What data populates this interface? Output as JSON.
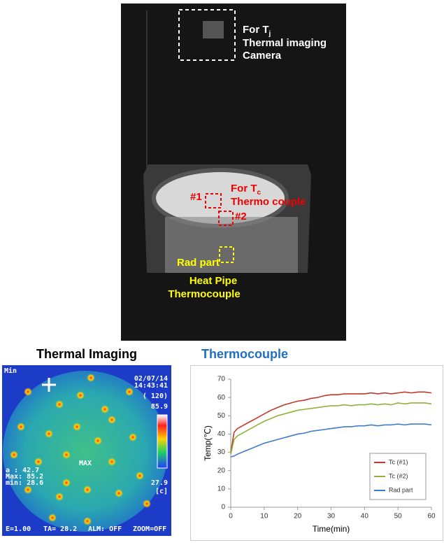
{
  "photo": {
    "camera_label": {
      "main": "For T",
      "sub": "j"
    },
    "camera_line2": "Thermal imaging",
    "camera_line3": "Camera",
    "case_label": {
      "main": "For T",
      "sub": "c"
    },
    "case_line2": "Thermo couple",
    "point1": "#1",
    "point2": "#2",
    "rad_label": "Rad part",
    "heatpipe_line1": "Heat Pipe",
    "heatpipe_line2": "Thermocouple"
  },
  "thermal": {
    "title": "Thermal Imaging",
    "mode": "Min",
    "date": "02/07/14",
    "time": "14:43:41",
    "range": "( 120)",
    "scale_max": "85.9",
    "scale_min": "27.9",
    "unit": "[c]",
    "cursor": "a  : 42.7",
    "max": "Max: 85.2",
    "min": "min: 28.6",
    "marker": "MAX",
    "emissivity": "E=1.00",
    "ambient": "TA= 28.2",
    "alarm": "ALM: OFF",
    "zoom": "ZOOM=OFF"
  },
  "chart_data": {
    "type": "line",
    "title": "Thermocouple",
    "xlabel": "Time(min)",
    "ylabel": "Temp(℃)",
    "xlim": [
      0,
      60
    ],
    "xticks": [
      0,
      10,
      20,
      30,
      40,
      50,
      60
    ],
    "ylim": [
      0,
      70
    ],
    "yticks": [
      0,
      10,
      20,
      30,
      40,
      50,
      60,
      70
    ],
    "grid": false,
    "legend": "lower right",
    "x": [
      0,
      1,
      2,
      4,
      6,
      8,
      10,
      12,
      14,
      16,
      18,
      20,
      22,
      24,
      26,
      28,
      30,
      32,
      34,
      36,
      38,
      40,
      42,
      44,
      46,
      48,
      50,
      52,
      54,
      56,
      58,
      60
    ],
    "series": [
      {
        "name": "Tc (#1)",
        "color": "#c0392b",
        "values": [
          30,
          41,
          43,
          45,
          47,
          49,
          51,
          53,
          54.5,
          56,
          57,
          58,
          58.5,
          59.5,
          60,
          61,
          61.5,
          61.5,
          62,
          62,
          62,
          62,
          62.5,
          62,
          62.5,
          62,
          62.5,
          63,
          62.5,
          63,
          63,
          62.5
        ]
      },
      {
        "name": "Tc (#2)",
        "color": "#8db33a",
        "values": [
          29,
          37,
          39,
          41,
          43,
          45,
          47,
          48.5,
          50,
          51,
          52,
          53,
          53.5,
          54,
          54.5,
          55,
          55.5,
          55.5,
          56,
          55.5,
          56,
          56,
          56.5,
          56,
          56.5,
          56,
          57,
          56.5,
          57,
          57,
          57,
          56.5
        ]
      },
      {
        "name": "Rad part",
        "color": "#3d7cc9",
        "values": [
          27.5,
          28,
          29,
          30.5,
          32,
          33.5,
          35,
          36,
          37,
          38,
          39,
          40,
          40.5,
          41.5,
          42,
          42.5,
          43,
          43.5,
          44,
          44,
          44.5,
          44.5,
          45,
          44.5,
          45,
          45,
          45.5,
          45,
          45.5,
          45.5,
          45.5,
          45
        ]
      }
    ]
  }
}
